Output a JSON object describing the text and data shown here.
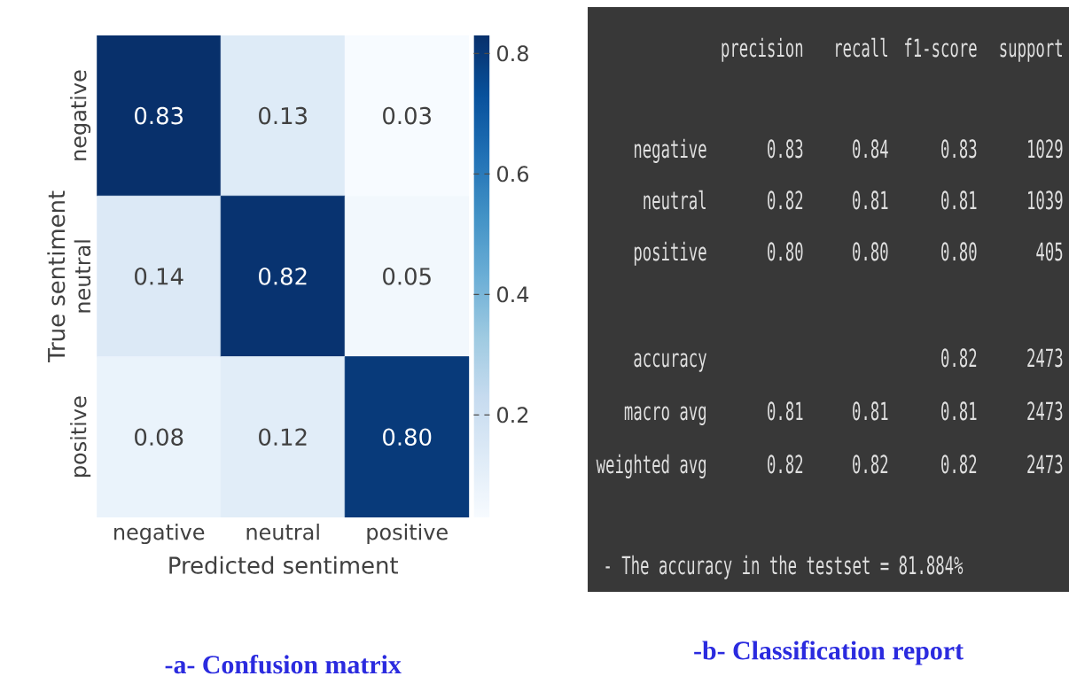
{
  "chart_data": [
    {
      "type": "heatmap",
      "title": "-a- Confusion matrix",
      "xlabel": "Predicted sentiment",
      "ylabel": "True sentiment",
      "categories": [
        "negative",
        "neutral",
        "positive"
      ],
      "y_categories": [
        "negative",
        "neutral",
        "positive"
      ],
      "cells": [
        [
          0.83,
          0.13,
          0.03
        ],
        [
          0.14,
          0.82,
          0.05
        ],
        [
          0.08,
          0.12,
          0.8
        ]
      ],
      "cell_labels": [
        [
          "0.83",
          "0.13",
          "0.03"
        ],
        [
          "0.14",
          "0.82",
          "0.05"
        ],
        [
          "0.08",
          "0.12",
          "0.80"
        ]
      ],
      "clim": [
        0.03,
        0.83
      ],
      "cticks": [
        0.2,
        0.4,
        0.6,
        0.8
      ]
    },
    {
      "type": "other",
      "title": "-b- Classification report",
      "categories": [
        "precision",
        "recall",
        "f1-score",
        "support"
      ],
      "y_categories": [
        "negative",
        "neutral",
        "positive",
        "accuracy",
        "macro avg",
        "weighted avg"
      ],
      "cell_labels": [
        [
          "0.83",
          "0.84",
          "0.83",
          "1029"
        ],
        [
          "0.82",
          "0.81",
          "0.81",
          "1039"
        ],
        [
          "0.80",
          "0.80",
          "0.80",
          "405"
        ],
        [
          null,
          null,
          "0.82",
          "2473"
        ],
        [
          "0.81",
          "0.81",
          "0.81",
          "2473"
        ],
        [
          "0.82",
          "0.82",
          "0.82",
          "2473"
        ]
      ],
      "annotations": [
        "- The accuracy in the testset = 81.884%"
      ]
    }
  ]
}
